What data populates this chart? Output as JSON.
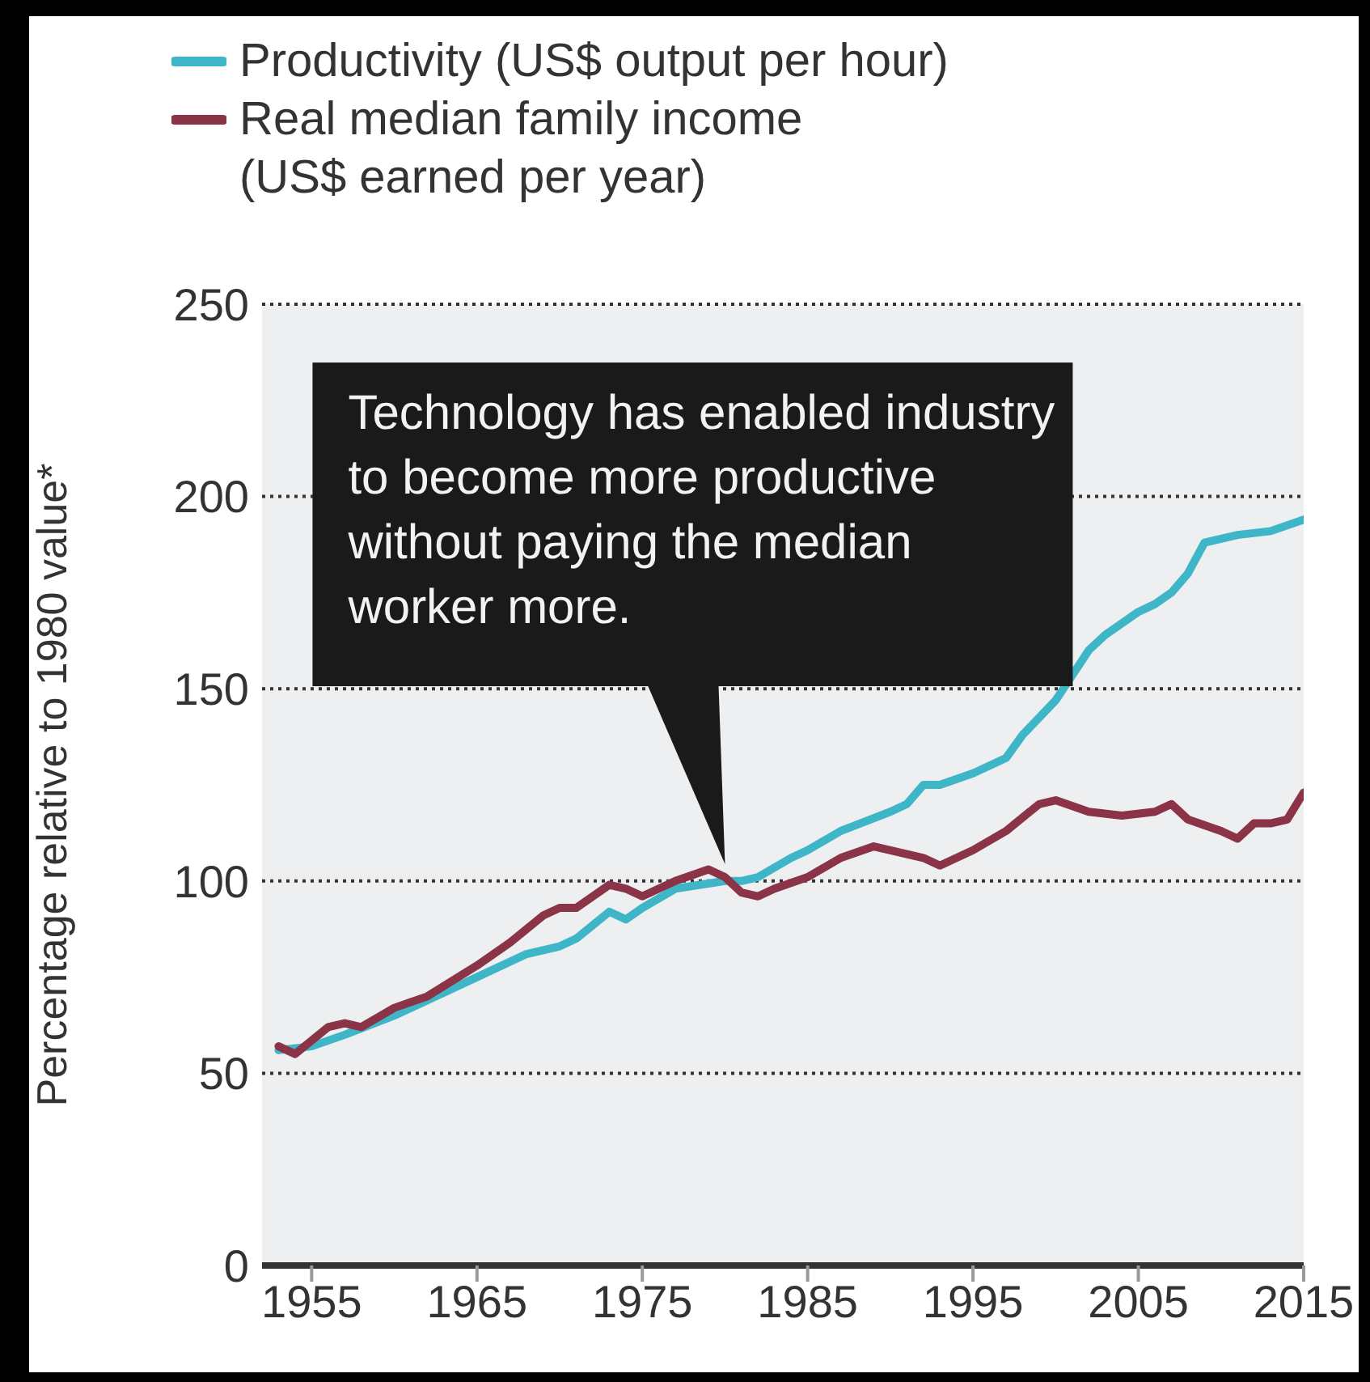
{
  "chart_data": {
    "type": "line",
    "ylabel": "Percentage relative to 1980 value*",
    "xlim": [
      1952,
      2015
    ],
    "xticks": [
      1955,
      1965,
      1975,
      1985,
      1995,
      2005,
      2015
    ],
    "ylim": [
      0,
      250
    ],
    "yticks": [
      0,
      50,
      100,
      150,
      200,
      250
    ],
    "grid": "y",
    "legend": "top left",
    "line_style": "solid",
    "annotations": [
      {
        "text": "Technology has enabled industry to become more productive without paying the median worker more.",
        "x": 1980,
        "y": 101
      }
    ],
    "series": [
      {
        "name": "Productivity (US$ output per hour)",
        "color": "#3fb6c8",
        "x": [
          1953,
          1955,
          1957,
          1960,
          1963,
          1965,
          1968,
          1970,
          1971,
          1973,
          1974,
          1975,
          1977,
          1980,
          1981,
          1982,
          1984,
          1985,
          1987,
          1990,
          1991,
          1992,
          1993,
          1995,
          1997,
          1998,
          2000,
          2002,
          2003,
          2005,
          2006,
          2007,
          2008,
          2009,
          2011,
          2013,
          2015
        ],
        "values": [
          56,
          57,
          60,
          65,
          71,
          75,
          81,
          83,
          85,
          92,
          90,
          93,
          98,
          100,
          100,
          101,
          106,
          108,
          113,
          118,
          120,
          125,
          125,
          128,
          132,
          138,
          147,
          160,
          164,
          170,
          172,
          175,
          180,
          188,
          190,
          191,
          194
        ]
      },
      {
        "name": "Real median family income (US$ earned per year)",
        "color": "#8b3347",
        "x": [
          1953,
          1954,
          1956,
          1957,
          1958,
          1960,
          1962,
          1965,
          1967,
          1969,
          1970,
          1971,
          1973,
          1974,
          1975,
          1977,
          1979,
          1980,
          1981,
          1982,
          1983,
          1985,
          1987,
          1989,
          1990,
          1992,
          1993,
          1995,
          1997,
          1999,
          2000,
          2002,
          2004,
          2006,
          2007,
          2008,
          2010,
          2011,
          2012,
          2013,
          2014,
          2015
        ],
        "values": [
          57,
          55,
          62,
          63,
          62,
          67,
          70,
          78,
          84,
          91,
          93,
          93,
          99,
          98,
          96,
          100,
          103,
          101,
          97,
          96,
          98,
          101,
          106,
          109,
          108,
          106,
          104,
          108,
          113,
          120,
          121,
          118,
          117,
          118,
          120,
          116,
          113,
          111,
          115,
          115,
          116,
          123
        ]
      }
    ]
  }
}
